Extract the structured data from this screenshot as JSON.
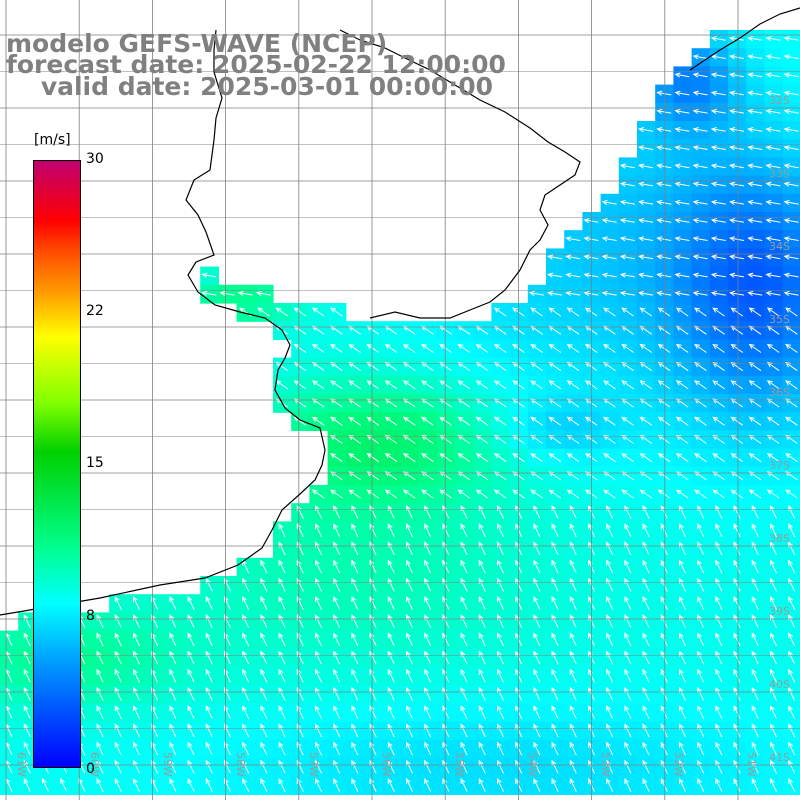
{
  "map": {
    "title_lines": [
      "modelo GEFS-WAVE (NCEP)",
      "forecast date: 2025-02-22 12:00:00",
      "    valid date: 2025-03-01 00:00:00"
    ],
    "variable": "wind speed with direction arrows",
    "region": "Rio de la Plata / Uruguay / Buenos Aires coast",
    "lat_labels": [
      "32S",
      "33S",
      "34S",
      "35S",
      "36S",
      "37S",
      "38S",
      "39S",
      "40S",
      "41S"
    ],
    "lon_labels": [
      "61W",
      "60W",
      "59W",
      "58W",
      "57W",
      "56W",
      "55W",
      "54W",
      "53W",
      "52W",
      "51W"
    ],
    "colors": {
      "ocean_low": "#0000ff",
      "ocean_high": "#00ff00",
      "land": "#ffffff",
      "grid": "#808080",
      "coast": "#000000",
      "arrow": "#ffffff"
    }
  },
  "colorbar": {
    "unit": "[m/s]",
    "ticks": [
      "30",
      "22",
      "15",
      "8",
      "0"
    ],
    "range": [
      0,
      30
    ]
  }
}
